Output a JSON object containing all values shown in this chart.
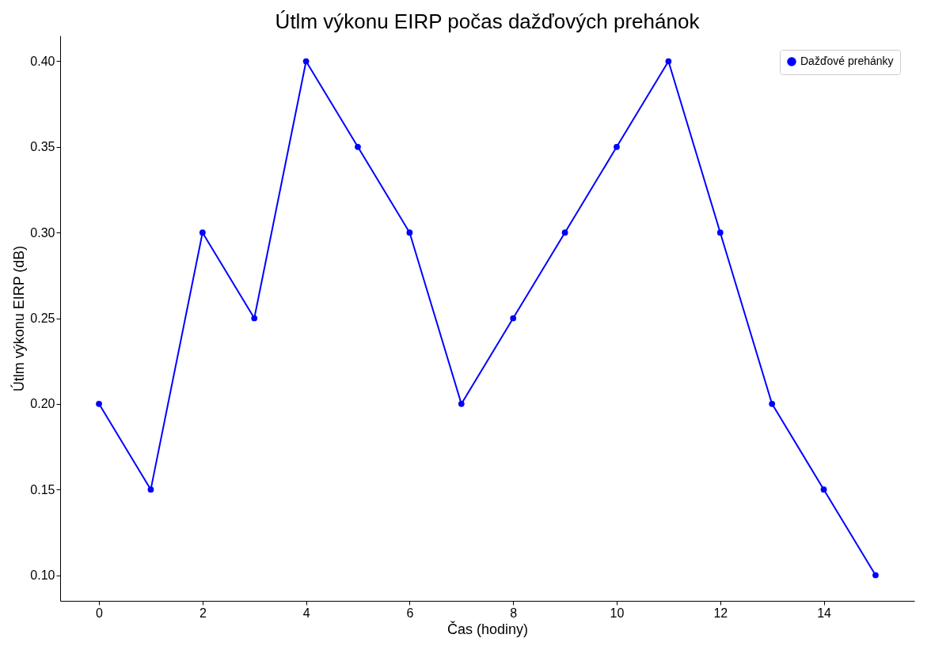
{
  "chart_data": {
    "type": "line",
    "title": "Útlm výkonu EIRP počas dažďových prehánok",
    "xlabel": "Čas (hodiny)",
    "ylabel": "Útlm výkonu EIRP (dB)",
    "x": [
      0,
      1,
      2,
      3,
      4,
      5,
      6,
      7,
      8,
      9,
      10,
      11,
      12,
      13,
      14,
      15
    ],
    "series": [
      {
        "name": "Dažďové prehánky",
        "color": "#0000ff",
        "values": [
          0.2,
          0.15,
          0.3,
          0.25,
          0.4,
          0.35,
          0.3,
          0.2,
          0.25,
          0.3,
          0.35,
          0.4,
          0.3,
          0.2,
          0.15,
          0.1
        ]
      }
    ],
    "xlim": [
      -0.75,
      15.75
    ],
    "xticks": [
      0,
      2,
      4,
      6,
      8,
      10,
      12,
      14
    ],
    "ylim": [
      0.085,
      0.415
    ],
    "yticks": [
      {
        "value": 0.1,
        "label": "0.10"
      },
      {
        "value": 0.15,
        "label": "0.15"
      },
      {
        "value": 0.2,
        "label": "0.20"
      },
      {
        "value": 0.25,
        "label": "0.25"
      },
      {
        "value": 0.3,
        "label": "0.30"
      },
      {
        "value": 0.35,
        "label": "0.35"
      },
      {
        "value": 0.4,
        "label": "0.40"
      }
    ],
    "grid": false,
    "legend": "top right",
    "marker": "circle",
    "line_style": "solid"
  }
}
